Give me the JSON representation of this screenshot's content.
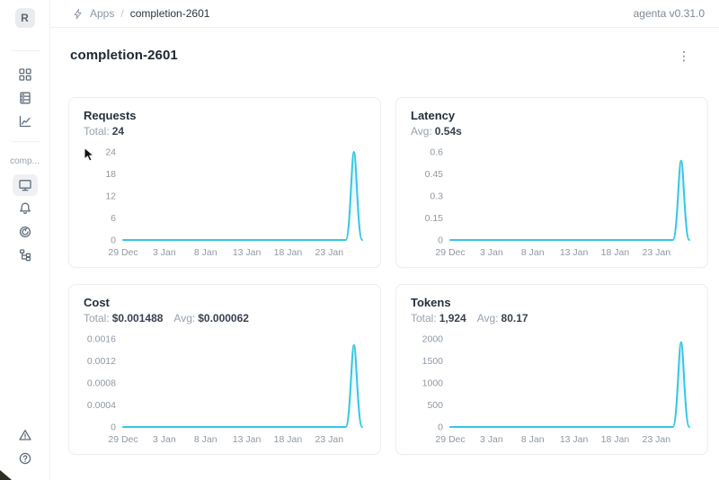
{
  "header": {
    "breadcrumb": {
      "icon": "thunderbolt-icon",
      "root": "Apps",
      "separator": "/",
      "current": "completion-2601"
    },
    "version": "agenta v0.31.0",
    "avatar_letter": "R"
  },
  "sidebar": {
    "app_label": "comp...",
    "items": [
      {
        "name": "apps-grid",
        "icon": "grid-icon",
        "selected": false
      },
      {
        "name": "testsets",
        "icon": "list-rows-icon",
        "selected": false
      },
      {
        "name": "observability",
        "icon": "line-chart-icon",
        "selected": false
      },
      {
        "name": "overview",
        "icon": "monitor-icon",
        "selected": true
      },
      {
        "name": "playground",
        "icon": "bell-icon",
        "selected": false
      },
      {
        "name": "evaluations",
        "icon": "circular-arrow-icon",
        "selected": false
      },
      {
        "name": "traces",
        "icon": "tree-branch-icon",
        "selected": false
      },
      {
        "name": "alerts",
        "icon": "warning-triangle-icon",
        "selected": false
      },
      {
        "name": "help",
        "icon": "question-circle-icon",
        "selected": false
      }
    ]
  },
  "page": {
    "title": "completion-2601",
    "menu_icon": "kebab-menu-icon",
    "menu_glyph": "⋮"
  },
  "colors": {
    "accent_line": "#36c6e3",
    "area_fill_top": "#aee6f2",
    "tick_text": "#8f98a3"
  },
  "chart_data": [
    {
      "type": "area",
      "title": "Requests",
      "stats": [
        {
          "label": "Total:",
          "value": "24"
        }
      ],
      "x_tick_labels": [
        "29 Dec",
        "3 Jan",
        "8 Jan",
        "13 Jan",
        "18 Jan",
        "23 Jan"
      ],
      "x_tick_days": [
        0,
        5,
        10,
        15,
        20,
        25
      ],
      "x_domain_days": 29,
      "x_range": "29 Dec to 27 Jan, daily points",
      "y_ticks": [
        "0",
        "6",
        "12",
        "18",
        "24"
      ],
      "ylim": [
        0,
        24
      ],
      "series_note": "value 0 every day except a single spike",
      "spike": {
        "rise_day": 27,
        "peak_day": 28,
        "end_day": 29,
        "peak_label": "26 Jan",
        "peak_value": 24
      },
      "grid": false,
      "legend": false
    },
    {
      "type": "area",
      "title": "Latency",
      "stats": [
        {
          "label": "Avg:",
          "value": "0.54s"
        }
      ],
      "x_tick_labels": [
        "29 Dec",
        "3 Jan",
        "8 Jan",
        "13 Jan",
        "18 Jan",
        "23 Jan"
      ],
      "x_tick_days": [
        0,
        5,
        10,
        15,
        20,
        25
      ],
      "x_domain_days": 29,
      "x_range": "29 Dec to 27 Jan, daily points",
      "y_ticks": [
        "0",
        "0.15",
        "0.3",
        "0.45",
        "0.6"
      ],
      "ylim": [
        0,
        0.6
      ],
      "series_note": "value 0 every day except a single spike",
      "spike": {
        "rise_day": 27,
        "peak_day": 28,
        "end_day": 29,
        "peak_label": "26 Jan",
        "peak_value": 0.54
      },
      "grid": false,
      "legend": false
    },
    {
      "type": "area",
      "title": "Cost",
      "stats": [
        {
          "label": "Total:",
          "value": "$0.001488"
        },
        {
          "label": "Avg:",
          "value": "$0.000062"
        }
      ],
      "x_tick_labels": [
        "29 Dec",
        "3 Jan",
        "8 Jan",
        "13 Jan",
        "18 Jan",
        "23 Jan"
      ],
      "x_tick_days": [
        0,
        5,
        10,
        15,
        20,
        25
      ],
      "x_domain_days": 29,
      "x_range": "29 Dec to 27 Jan, daily points",
      "y_ticks": [
        "0",
        "0.0004",
        "0.0008",
        "0.0012",
        "0.0016"
      ],
      "ylim": [
        0,
        0.0016
      ],
      "series_note": "value 0 every day except a single spike",
      "spike": {
        "rise_day": 27,
        "peak_day": 28,
        "end_day": 29,
        "peak_label": "26 Jan",
        "peak_value": 0.001488
      },
      "grid": false,
      "legend": false
    },
    {
      "type": "area",
      "title": "Tokens",
      "stats": [
        {
          "label": "Total:",
          "value": "1,924"
        },
        {
          "label": "Avg:",
          "value": "80.17"
        }
      ],
      "x_tick_labels": [
        "29 Dec",
        "3 Jan",
        "8 Jan",
        "13 Jan",
        "18 Jan",
        "23 Jan"
      ],
      "x_tick_days": [
        0,
        5,
        10,
        15,
        20,
        25
      ],
      "x_domain_days": 29,
      "x_range": "29 Dec to 27 Jan, daily points",
      "y_ticks": [
        "0",
        "500",
        "1000",
        "1500",
        "2000"
      ],
      "ylim": [
        0,
        2000
      ],
      "series_note": "value 0 every day except a single spike",
      "spike": {
        "rise_day": 27,
        "peak_day": 28,
        "end_day": 29,
        "peak_label": "26 Jan",
        "peak_value": 1924
      },
      "grid": false,
      "legend": false
    }
  ]
}
